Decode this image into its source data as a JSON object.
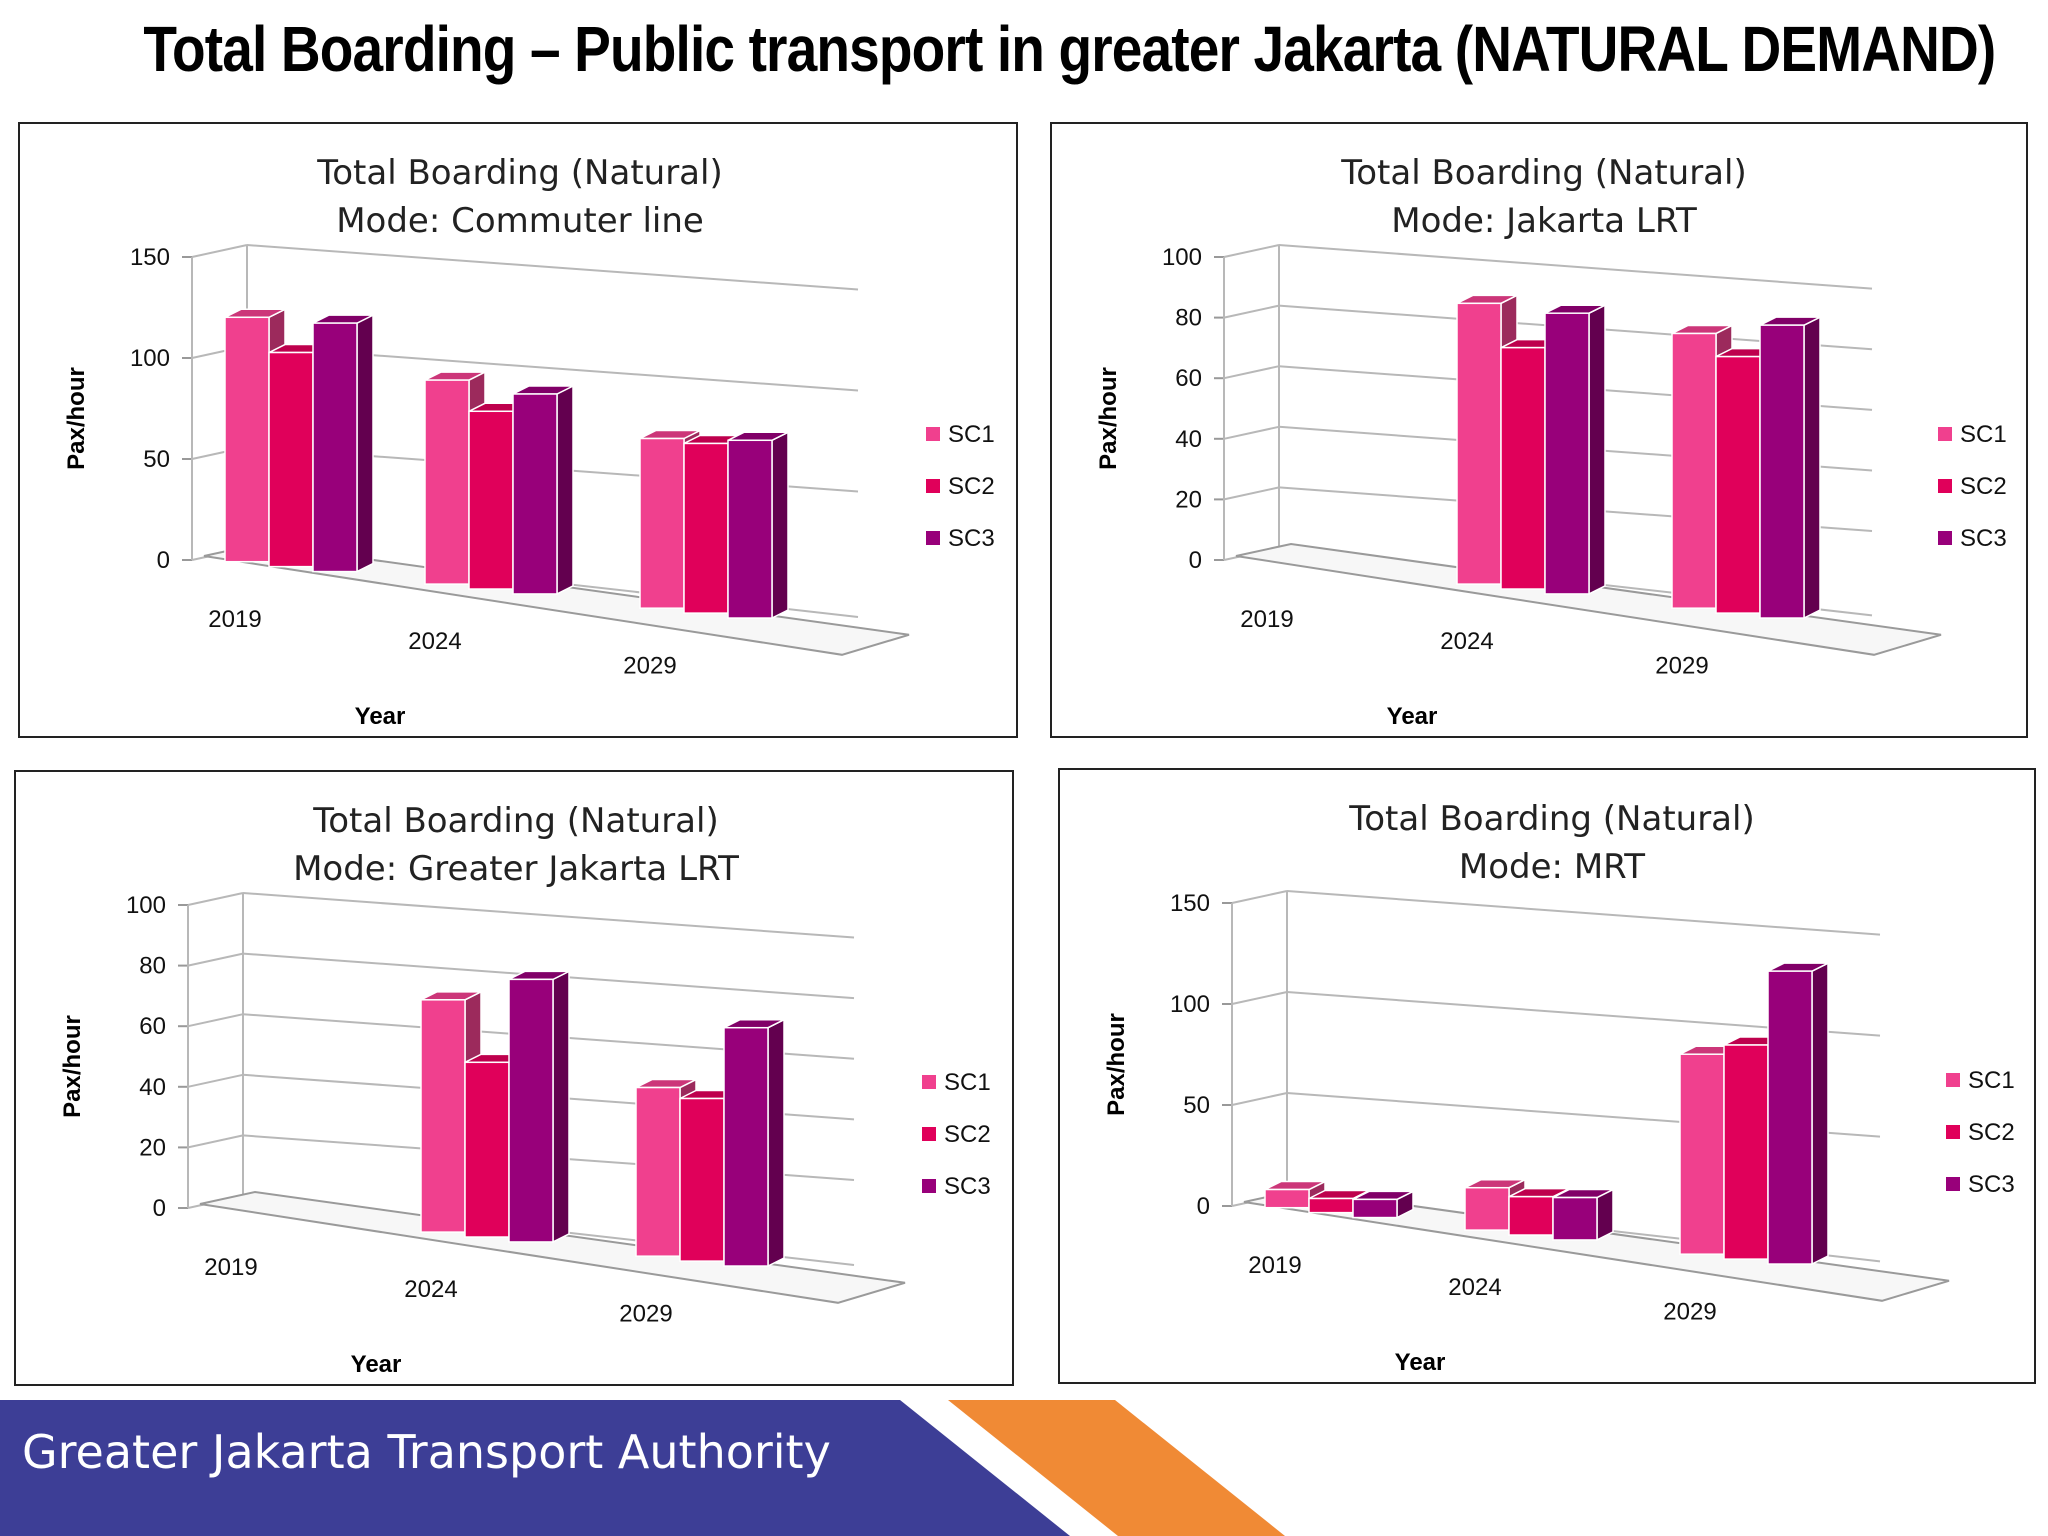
{
  "page": {
    "title": "Total Boarding – Public transport in greater Jakarta (NATURAL DEMAND)",
    "footer": "Greater Jakarta Transport Authority"
  },
  "colors": {
    "SC1": "#f0408e",
    "SC2": "#e0005a",
    "SC3": "#98007a",
    "footer_blue": "#3d3e96",
    "footer_orange": "#f08a35"
  },
  "chart_data": [
    {
      "type": "bar",
      "title": "Total Boarding (Natural)",
      "subtitle": "Mode: Commuter line",
      "xlabel": "Year",
      "ylabel": "Pax/hour",
      "categories": [
        "2019",
        "2024",
        "2029"
      ],
      "ylim": [
        0,
        150
      ],
      "yticks": [
        "0",
        "50",
        "100",
        "150"
      ],
      "legend": "right",
      "series": [
        {
          "name": "SC1",
          "values": [
            120,
            100,
            83
          ]
        },
        {
          "name": "SC2",
          "values": [
            105,
            87,
            83
          ]
        },
        {
          "name": "SC3",
          "values": [
            122,
            98,
            87
          ]
        }
      ]
    },
    {
      "type": "bar",
      "title": "Total Boarding (Natural)",
      "subtitle": "Mode: Jakarta LRT",
      "xlabel": "Year",
      "ylabel": "Pax/hour",
      "categories": [
        "2019",
        "2024",
        "2029"
      ],
      "ylim": [
        0,
        100
      ],
      "yticks": [
        "0",
        "20",
        "40",
        "60",
        "80",
        "100"
      ],
      "legend": "right",
      "series": [
        {
          "name": "SC1",
          "values": [
            0,
            92,
            90
          ]
        },
        {
          "name": "SC2",
          "values": [
            0,
            79,
            84
          ]
        },
        {
          "name": "SC3",
          "values": [
            0,
            92,
            96
          ]
        }
      ]
    },
    {
      "type": "bar",
      "title": "Total Boarding (Natural)",
      "subtitle": "Mode: Greater Jakarta LRT",
      "xlabel": "Year",
      "ylabel": "Pax/hour",
      "categories": [
        "2019",
        "2024",
        "2029"
      ],
      "ylim": [
        0,
        100
      ],
      "yticks": [
        "0",
        "20",
        "40",
        "60",
        "80",
        "100"
      ],
      "legend": "right",
      "series": [
        {
          "name": "SC1",
          "values": [
            0,
            76,
            55
          ]
        },
        {
          "name": "SC2",
          "values": [
            0,
            57,
            53
          ]
        },
        {
          "name": "SC3",
          "values": [
            0,
            86,
            78
          ]
        }
      ]
    },
    {
      "type": "bar",
      "title": "Total Boarding (Natural)",
      "subtitle": "Mode: MRT",
      "xlabel": "Year",
      "ylabel": "Pax/hour",
      "categories": [
        "2019",
        "2024",
        "2029"
      ],
      "ylim": [
        0,
        150
      ],
      "yticks": [
        "0",
        "50",
        "100",
        "150"
      ],
      "legend": "right",
      "series": [
        {
          "name": "SC1",
          "values": [
            8,
            20,
            98
          ]
        },
        {
          "name": "SC2",
          "values": [
            6,
            18,
            105
          ]
        },
        {
          "name": "SC3",
          "values": [
            8,
            20,
            144
          ]
        }
      ]
    }
  ]
}
